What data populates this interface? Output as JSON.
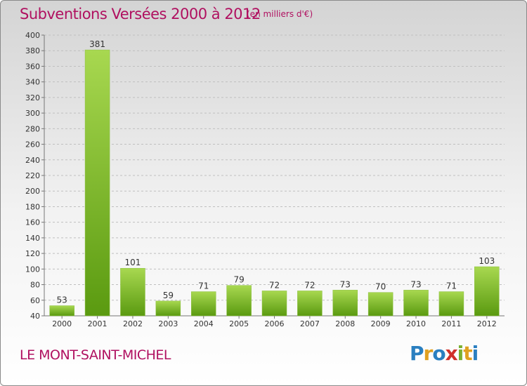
{
  "header": {
    "title": "Subventions Versées 2000 à 2012",
    "subtitle": "(en milliers d'€)"
  },
  "footer": {
    "commune": "LE MONT-SAINT-MICHEL",
    "logo": "Proxiti"
  },
  "colors": {
    "title": "#b01060",
    "bar_light": "#a8d850",
    "bar_dark": "#5a9a10",
    "grid": "#bfbfbf"
  },
  "chart_data": {
    "type": "bar",
    "title": "Subventions Versées 2000 à 2012",
    "subtitle": "(en milliers d'€)",
    "categories": [
      "2000",
      "2001",
      "2002",
      "2003",
      "2004",
      "2005",
      "2006",
      "2007",
      "2008",
      "2009",
      "2010",
      "2011",
      "2012"
    ],
    "values": [
      53,
      381,
      101,
      59,
      71,
      79,
      72,
      72,
      73,
      70,
      73,
      71,
      103
    ],
    "ylim": [
      40,
      400
    ],
    "yticks": [
      40,
      60,
      80,
      100,
      120,
      140,
      160,
      180,
      200,
      220,
      240,
      260,
      280,
      300,
      320,
      340,
      360,
      380,
      400
    ],
    "grid": true,
    "legend": "none"
  }
}
